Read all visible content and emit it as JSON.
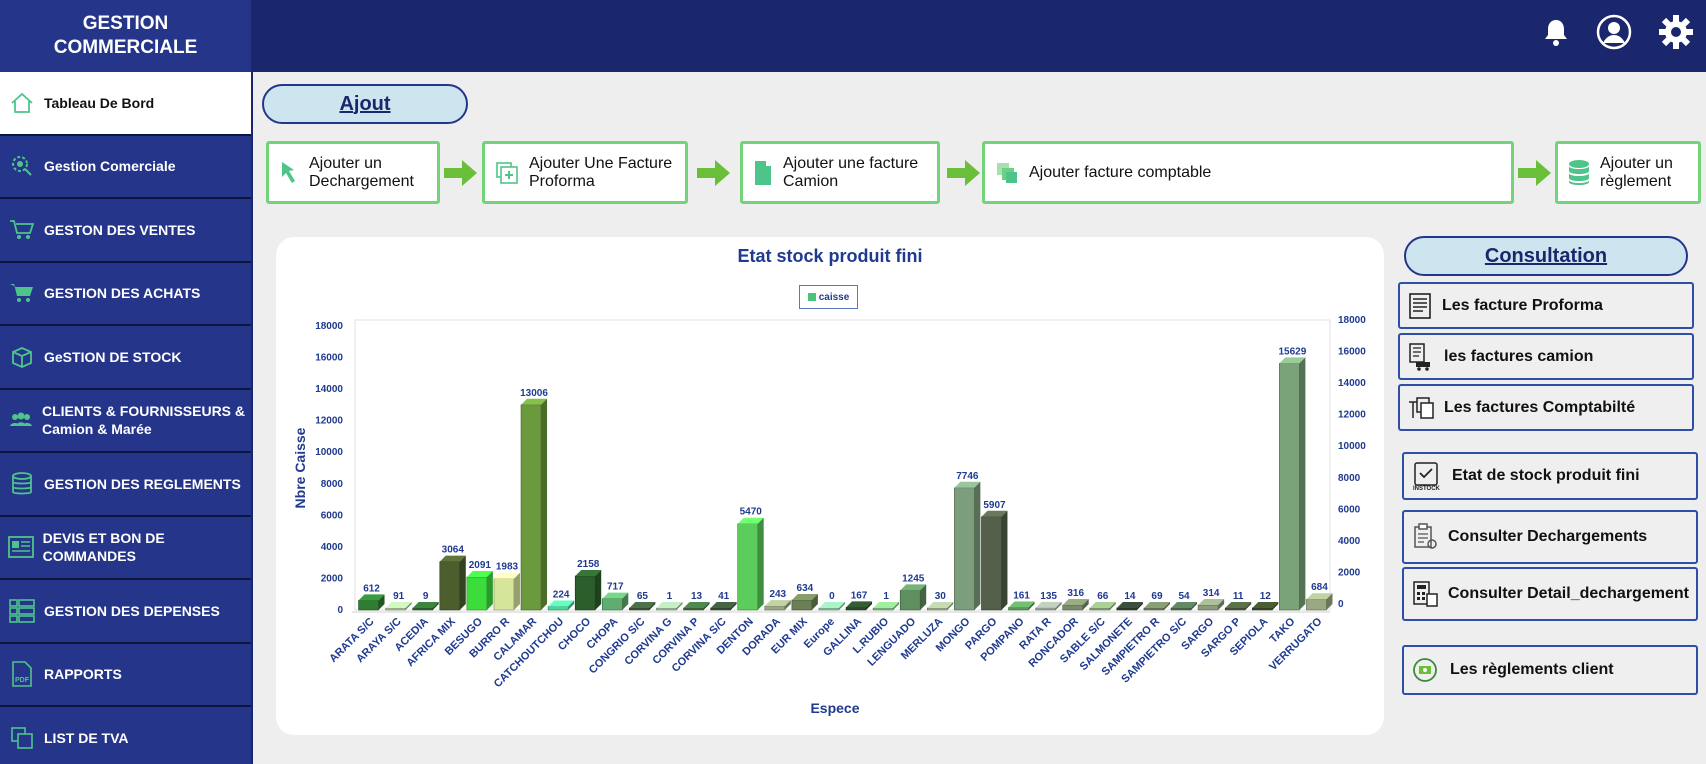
{
  "app": {
    "title_line1": "GESTION",
    "title_line2": "COMMERCIALE"
  },
  "topbar": {
    "icons": [
      "bell-icon",
      "user-icon",
      "gear-icon"
    ]
  },
  "sidebar": {
    "items": [
      {
        "label": "Tableau De Bord",
        "icon": "home-icon"
      },
      {
        "label": "Gestion Comerciale",
        "icon": "gear-bulb-icon"
      },
      {
        "label": "GESTON DES VENTES",
        "icon": "cart-icon"
      },
      {
        "label": "GESTION DES ACHATS",
        "icon": "cart-add-icon"
      },
      {
        "label": "GeSTION DE STOCK",
        "icon": "box-icon"
      },
      {
        "label": "CLIENTS  &  FOURNISSEURS &      Camion  &    Marée",
        "icon": "users-icon"
      },
      {
        "label": "GESTION DES REGLEMENTS",
        "icon": "database-icon"
      },
      {
        "label": "DEVIS ET BON DE COMMANDES",
        "icon": "document-icon"
      },
      {
        "label": "GESTION DES DEPENSES",
        "icon": "grid-list-icon"
      },
      {
        "label": "RAPPORTS",
        "icon": "pdf-icon"
      },
      {
        "label": "LIST DE TVA",
        "icon": "copy-icon"
      }
    ]
  },
  "ajout": {
    "title": "Ajout",
    "steps": [
      {
        "label": "Ajouter un Dechargement",
        "icon": "pointer-icon"
      },
      {
        "label": "Ajouter Une Facture Proforma",
        "icon": "add-copy-icon"
      },
      {
        "label": "Ajouter une facture Camion",
        "icon": "file-icon"
      },
      {
        "label": "Ajouter  facture comptable",
        "icon": "copy-icon"
      },
      {
        "label": "Ajouter un règlement",
        "icon": "database-icon"
      }
    ]
  },
  "consultation": {
    "title": "Consultation",
    "items": [
      {
        "label": "Les facture Proforma",
        "icon": "invoice-icon"
      },
      {
        "label": "les factures camion",
        "icon": "truck-invoice-icon"
      },
      {
        "label": "Les factures Comptabilté",
        "icon": "copy-icon"
      },
      {
        "label": "Etat de stock produit fini",
        "icon": "instock-icon"
      },
      {
        "label": "Consulter Dechargements",
        "icon": "clipboard-icon"
      },
      {
        "label": "Consulter Detail_dechargement",
        "icon": "calculator-icon"
      },
      {
        "label": "Les règlements client",
        "icon": "payment-icon"
      }
    ]
  },
  "chart_data": {
    "type": "bar",
    "title": "Etat stock produit fini",
    "xlabel": "Espece",
    "ylabel": "Nbre Caisse",
    "ylim": [
      0,
      18000
    ],
    "yticks": [
      0,
      2000,
      4000,
      6000,
      8000,
      10000,
      12000,
      14000,
      16000,
      18000
    ],
    "legend": "top-center",
    "series": [
      {
        "name": "caisse",
        "color": "#49c47b"
      }
    ],
    "categories": [
      "ARATA S/C",
      "ARAYA S/C",
      "ACEDIA",
      "AFRICA MIX",
      "BESUGO",
      "BURRO   R",
      "CALAMAR",
      "CATCHOUTCHOU",
      "CHOCO",
      "CHOPA",
      "CONGRIO S/C",
      "CORVINA G",
      "CORVINA P",
      "CORVINA S/C",
      "DENTON",
      "DORADA",
      "EUR MIX",
      "Europe",
      "GALLINA",
      "L.RUBIO",
      "LENGUADO",
      "MERLUZA",
      "MONGO",
      "PARGO",
      "POMPANO",
      "RATA   R",
      "RONCADOR",
      "SABLE S/C",
      "SALMONETE",
      "SAMPIETRO R",
      "SAMPIETRO S/C",
      "SARGO",
      "SARGO   P",
      "SEPIOLA",
      "TAKO",
      "VERRUGATO"
    ],
    "values": [
      612,
      91,
      9,
      3064,
      2091,
      1983,
      13006,
      224,
      2158,
      717,
      65,
      1,
      13,
      41,
      5470,
      243,
      634,
      0,
      167,
      1,
      1245,
      30,
      7746,
      5907,
      161,
      135,
      316,
      66,
      14,
      69,
      54,
      314,
      11,
      12,
      15629,
      684
    ],
    "colors": [
      "#2e7d32",
      "#a8c79a",
      "#2e6b30",
      "#4c5e2e",
      "#3ddc3d",
      "#d5e59a",
      "#6b9a3e",
      "#4fd39a",
      "#2b5e2b",
      "#5fad6f",
      "#3b5a3b",
      "#9fbf9f",
      "#3e6e3e",
      "#365036",
      "#5ccc5c",
      "#9aa882",
      "#6b7f55",
      "#88c4a0",
      "#2a4a2a",
      "#7fbf7f",
      "#5f8f5f",
      "#a0b090",
      "#7c9e7c",
      "#55604a",
      "#5a9a5a",
      "#9aa89a",
      "#7a8a6a",
      "#88a878",
      "#2f3f2f",
      "#6f7f5f",
      "#4f6f4f",
      "#8a9a7a",
      "#4a5a3a",
      "#3a4a2a",
      "#7aa37a",
      "#9aa882"
    ]
  }
}
